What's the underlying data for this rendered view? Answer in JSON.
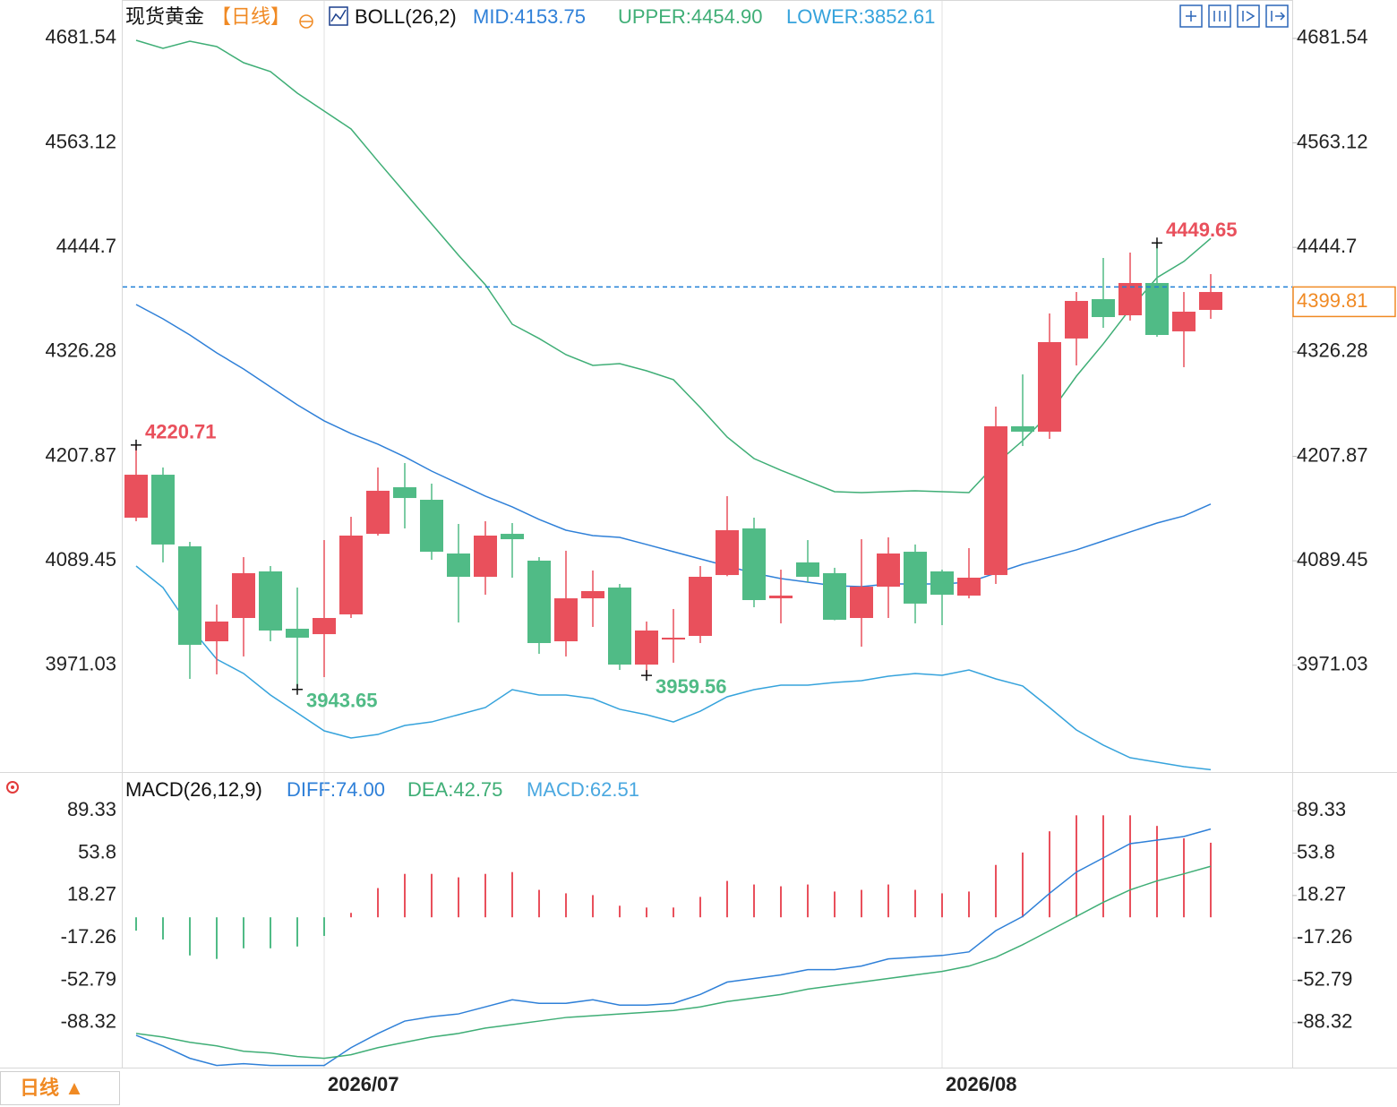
{
  "chart_data": [
    {
      "type": "candlestick",
      "title": "现货黄金",
      "period": "【日线】",
      "indicator": "BOLL(26,2)",
      "categories": [
        null,
        null,
        null,
        null,
        null,
        null,
        null,
        "2026/07",
        null,
        null,
        null,
        null,
        null,
        null,
        null,
        null,
        null,
        null,
        null,
        null,
        null,
        null,
        null,
        null,
        null,
        null,
        null,
        null,
        null,
        null,
        "2026/08",
        null,
        null,
        null,
        null,
        null,
        null,
        null,
        null,
        null,
        null
      ],
      "open": [
        4138.3,
        4187.0,
        4105.8,
        3998.2,
        4024.6,
        4077.4,
        4012.4,
        4006.3,
        4028.7,
        4120.0,
        4172.8,
        4158.6,
        4097.7,
        4071.3,
        4120.0,
        4089.6,
        3998.2,
        4046.9,
        4059.1,
        3971.8,
        4000.2,
        4004.3,
        4073.3,
        4126.1,
        4046.9,
        4087.6,
        4075.4,
        4024.6,
        4060.1,
        4099.7,
        4077.4,
        4050.0,
        4073.3,
        4241.9,
        4235.8,
        4341.4,
        4386.0,
        4367.7,
        4404.3,
        4349.5,
        4373.8
      ],
      "high": [
        4220.71,
        4195.2,
        4110.9,
        4039.8,
        4093.6,
        4083.5,
        4059.1,
        4112.9,
        4139.3,
        4195.2,
        4200.2,
        4176.9,
        4131.2,
        4134.3,
        4132.2,
        4093.6,
        4100.8,
        4078.4,
        4063.2,
        4020.6,
        4034.8,
        4083.5,
        4162.7,
        4138.3,
        4079.4,
        4112.9,
        4081.5,
        4113.9,
        4116.0,
        4107.9,
        4079.4,
        4103.8,
        4264.2,
        4300.7,
        4369.8,
        4394.1,
        4432.7,
        4438.8,
        4449.65,
        4394.1,
        4414.4
      ],
      "low": [
        4134.3,
        4087.6,
        3955.6,
        3960.7,
        3981.0,
        3998.2,
        3943.65,
        3957.6,
        4024.6,
        4118.0,
        4126.1,
        4090.6,
        4019.5,
        4051.0,
        4070.3,
        3984.0,
        3981.0,
        4014.5,
        3965.7,
        3959.56,
        3973.9,
        3996.2,
        4072.0,
        4036.8,
        4018.5,
        4065.2,
        4022.0,
        3992.1,
        4024.6,
        4018.5,
        4016.5,
        4046.9,
        4063.2,
        4219.5,
        4227.7,
        4310.9,
        4353.5,
        4361.7,
        4343.4,
        4308.9,
        4363.7
      ],
      "close": [
        4187.0,
        4107.9,
        3994.2,
        4020.6,
        4075.4,
        4010.4,
        4002.3,
        4024.6,
        4118.0,
        4168.8,
        4160.6,
        4099.7,
        4071.3,
        4118.0,
        4113.9,
        3996.2,
        4046.9,
        4055.1,
        3971.8,
        4010.4,
        4002.3,
        4071.3,
        4124.1,
        4044.9,
        4050.0,
        4071.3,
        4022.6,
        4060.1,
        4097.7,
        4040.9,
        4051.0,
        4070.3,
        4241.9,
        4235.8,
        4337.3,
        4384.0,
        4365.7,
        4404.3,
        4345.4,
        4371.8,
        4394.1
      ],
      "up_color": "#e9505c",
      "down_color": "#50bb86",
      "series": [
        {
          "name": "MID:4153.75",
          "color": "#2f80d8",
          "values": [
            4379.9,
            4363.7,
            4345.4,
            4325.1,
            4306.8,
            4286.5,
            4266.2,
            4248.0,
            4233.7,
            4221.6,
            4207.3,
            4191.1,
            4176.9,
            4162.7,
            4150.5,
            4136.3,
            4124.1,
            4118.0,
            4116.0,
            4107.9,
            4099.7,
            4091.6,
            4083.5,
            4075.4,
            4069.3,
            4065.2,
            4061.2,
            4060.1,
            4063.2,
            4063.2,
            4063.2,
            4065.2,
            4075.4,
            4085.5,
            4093.6,
            4101.8,
            4111.9,
            4122.1,
            4132.2,
            4140.3,
            4153.75
          ]
        },
        {
          "name": "UPPER:4454.90",
          "color": "#3fae76",
          "values": [
            4679.4,
            4670.3,
            4678.4,
            4672.3,
            4654.0,
            4643.9,
            4619.5,
            4599.2,
            4578.9,
            4542.4,
            4506.8,
            4471.3,
            4435.8,
            4402.3,
            4357.6,
            4341.4,
            4323.1,
            4310.9,
            4312.9,
            4304.8,
            4294.7,
            4263.2,
            4229.7,
            4205.3,
            4192.1,
            4179.9,
            4167.8,
            4166.7,
            4167.8,
            4168.8,
            4167.8,
            4166.7,
            4199.2,
            4225.6,
            4256.1,
            4298.7,
            4335.3,
            4374.9,
            4410.4,
            4428.7,
            4454.9
          ]
        },
        {
          "name": "LOWER:3852.61",
          "color": "#36a3dc",
          "values": [
            4083.5,
            4059.1,
            4014.5,
            3977.9,
            3961.7,
            3937.3,
            3917.0,
            3896.7,
            3888.6,
            3892.6,
            3902.8,
            3906.8,
            3915.0,
            3923.1,
            3943.4,
            3937.3,
            3937.3,
            3933.2,
            3921.1,
            3915.0,
            3906.8,
            3919.0,
            3935.3,
            3943.4,
            3948.5,
            3948.5,
            3951.5,
            3953.5,
            3958.6,
            3961.7,
            3959.6,
            3965.7,
            3955.6,
            3947.5,
            3923.1,
            3897.7,
            3880.5,
            3866.2,
            3861.2,
            3856.1,
            3852.61
          ]
        }
      ],
      "last_price": 4399.81,
      "ylim": [
        3850,
        4720
      ],
      "yticks": [
        4681.54,
        4563.12,
        4444.7,
        4326.28,
        4207.87,
        4089.45,
        3971.03
      ],
      "period_button": "日线 ▲"
    },
    {
      "type": "macd",
      "title": "MACD(26,12,9)",
      "histogram_name": "MACD:62.51",
      "histogram_color": "#4aa8e0",
      "histogram": [
        -11.2,
        -18.6,
        -32.0,
        -34.9,
        -26.0,
        -26.0,
        -24.5,
        -15.6,
        3.7,
        24.5,
        36.4,
        36.4,
        33.5,
        36.4,
        37.9,
        23.0,
        20.1,
        18.6,
        9.7,
        8.2,
        8.2,
        17.1,
        30.5,
        27.5,
        26.0,
        27.5,
        21.6,
        23.0,
        27.5,
        23.0,
        20.1,
        21.6,
        43.9,
        54.3,
        72.1,
        85.5,
        85.5,
        85.5,
        76.6,
        66.2,
        62.51
      ],
      "series": [
        {
          "name": "DIFF:74.00",
          "color": "#2f80d8",
          "values": [
            -98.9,
            -107.8,
            -118.2,
            -124.2,
            -122.7,
            -124.2,
            -124.2,
            -124.2,
            -109.3,
            -97.4,
            -87.0,
            -83.3,
            -81.0,
            -75.1,
            -69.1,
            -72.1,
            -72.1,
            -69.1,
            -73.6,
            -73.6,
            -72.1,
            -64.7,
            -54.3,
            -51.3,
            -48.3,
            -43.9,
            -43.9,
            -40.9,
            -34.9,
            -33.5,
            -32.0,
            -29.0,
            -11.2,
            0.7,
            20.1,
            37.9,
            49.8,
            61.7,
            64.7,
            67.7,
            74.0
          ]
        },
        {
          "name": "DEA:42.75",
          "color": "#3fae76",
          "values": [
            -97.4,
            -100.4,
            -104.8,
            -107.8,
            -112.3,
            -113.8,
            -116.7,
            -118.2,
            -115.2,
            -109.3,
            -104.8,
            -100.4,
            -97.4,
            -92.9,
            -90.0,
            -87.0,
            -84.0,
            -82.5,
            -81.0,
            -79.6,
            -78.1,
            -75.1,
            -70.6,
            -67.7,
            -64.7,
            -60.2,
            -57.2,
            -54.3,
            -51.3,
            -48.3,
            -45.4,
            -40.9,
            -33.5,
            -23.0,
            -11.2,
            0.7,
            12.6,
            23.0,
            30.5,
            36.4,
            42.75
          ]
        }
      ],
      "ylim": [
        -126,
        97
      ],
      "yticks": [
        89.33,
        53.8,
        18.27,
        -17.26,
        -52.79,
        -88.32
      ]
    }
  ]
}
